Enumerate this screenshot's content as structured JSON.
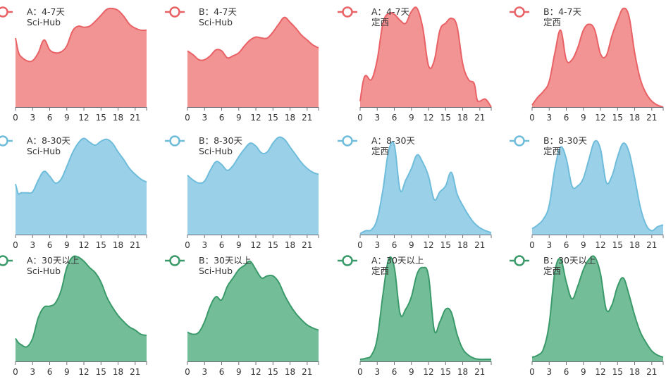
{
  "colors": {
    "red": "#e86266",
    "blue": "#6fbcdb",
    "green": "#3b9a6a"
  },
  "x_tick_labels": [
    "0",
    "3",
    "6",
    "9",
    "12",
    "15",
    "18",
    "21"
  ],
  "chart_data": [
    {
      "type": "area",
      "legend": "A：4-7天",
      "source": "Sci-Hub",
      "color": "red",
      "xlim": [
        0,
        23
      ],
      "x": [
        0,
        0.5,
        1,
        2,
        3,
        4,
        5,
        6,
        7,
        8,
        9,
        10,
        11,
        12,
        13,
        14,
        15,
        16,
        17,
        18,
        19,
        20,
        21,
        22,
        23
      ],
      "y": [
        0.7,
        0.56,
        0.51,
        0.47,
        0.47,
        0.55,
        0.68,
        0.58,
        0.55,
        0.56,
        0.62,
        0.77,
        0.82,
        0.81,
        0.82,
        0.87,
        0.93,
        0.99,
        1.0,
        0.98,
        0.92,
        0.84,
        0.8,
        0.78,
        0.78
      ]
    },
    {
      "type": "area",
      "legend": "B：4-7天",
      "source": "Sci-Hub",
      "color": "red",
      "xlim": [
        0,
        23
      ],
      "x": [
        0,
        1,
        2,
        3,
        4,
        5,
        6,
        7,
        8,
        9,
        10,
        11,
        12,
        13,
        14,
        15,
        16,
        17,
        18,
        19,
        20,
        21,
        22,
        23
      ],
      "y": [
        0.57,
        0.53,
        0.48,
        0.48,
        0.52,
        0.58,
        0.57,
        0.5,
        0.52,
        0.55,
        0.62,
        0.68,
        0.71,
        0.7,
        0.7,
        0.76,
        0.84,
        0.91,
        0.86,
        0.8,
        0.73,
        0.68,
        0.63,
        0.6
      ]
    },
    {
      "type": "area",
      "legend": "A：4-7天",
      "source": "定西",
      "color": "red",
      "xlim": [
        0,
        23
      ],
      "x": [
        0,
        0.5,
        1,
        2,
        3,
        4,
        5,
        6,
        7,
        8,
        9,
        10,
        11,
        12,
        13,
        14,
        15,
        16,
        17,
        18,
        19,
        20,
        20.5,
        21,
        22,
        23
      ],
      "y": [
        0.06,
        0.25,
        0.32,
        0.28,
        0.48,
        0.85,
        0.95,
        0.94,
        0.88,
        0.85,
        0.97,
        1.0,
        0.8,
        0.42,
        0.47,
        0.78,
        0.85,
        0.9,
        0.82,
        0.44,
        0.28,
        0.24,
        0.08,
        0.06,
        0.08,
        0.0
      ]
    },
    {
      "type": "area",
      "legend": "B：4-7天",
      "source": "定西",
      "color": "red",
      "xlim": [
        0,
        23
      ],
      "x": [
        0,
        1,
        2,
        3,
        4,
        5,
        6,
        7,
        8,
        9,
        10,
        11,
        12,
        13,
        14,
        15,
        16,
        17,
        18,
        19,
        20,
        21,
        22,
        23
      ],
      "y": [
        0.02,
        0.1,
        0.16,
        0.26,
        0.55,
        0.78,
        0.48,
        0.48,
        0.6,
        0.78,
        0.84,
        0.78,
        0.54,
        0.52,
        0.72,
        0.88,
        1.0,
        0.92,
        0.55,
        0.28,
        0.14,
        0.06,
        0.02,
        0.0
      ]
    },
    {
      "type": "area",
      "legend": "A：8-30天",
      "source": "Sci-Hub",
      "color": "blue",
      "xlim": [
        0,
        23
      ],
      "x": [
        0,
        0.5,
        1,
        2,
        3,
        4,
        5,
        6,
        7,
        8,
        9,
        10,
        11,
        12,
        13,
        14,
        15,
        16,
        17,
        18,
        19,
        20,
        21,
        22,
        23
      ],
      "y": [
        0.52,
        0.42,
        0.43,
        0.43,
        0.44,
        0.56,
        0.65,
        0.6,
        0.53,
        0.57,
        0.7,
        0.84,
        0.94,
        0.99,
        0.95,
        0.92,
        0.96,
        0.98,
        0.94,
        0.85,
        0.77,
        0.68,
        0.62,
        0.57,
        0.54
      ]
    },
    {
      "type": "area",
      "legend": "B：8-30天",
      "source": "Sci-Hub",
      "color": "blue",
      "xlim": [
        0,
        23
      ],
      "x": [
        0,
        1,
        2,
        3,
        4,
        5,
        6,
        7,
        8,
        9,
        10,
        11,
        12,
        13,
        14,
        15,
        16,
        17,
        18,
        19,
        20,
        21,
        22,
        23
      ],
      "y": [
        0.61,
        0.56,
        0.53,
        0.55,
        0.66,
        0.75,
        0.72,
        0.66,
        0.71,
        0.8,
        0.88,
        0.94,
        0.91,
        0.84,
        0.85,
        0.94,
        1.0,
        0.98,
        0.9,
        0.82,
        0.74,
        0.68,
        0.64,
        0.62
      ]
    },
    {
      "type": "area",
      "legend": "A：8-30天",
      "source": "定西",
      "color": "blue",
      "xlim": [
        0,
        23
      ],
      "x": [
        0,
        1,
        2,
        3,
        4,
        5,
        6,
        7,
        8,
        9,
        10,
        11,
        12,
        13,
        14,
        15,
        16,
        17,
        18,
        19,
        20,
        21,
        22,
        23
      ],
      "y": [
        0.01,
        0.04,
        0.05,
        0.16,
        0.46,
        0.86,
        0.92,
        0.46,
        0.56,
        0.68,
        0.82,
        0.74,
        0.6,
        0.36,
        0.44,
        0.5,
        0.64,
        0.42,
        0.3,
        0.2,
        0.12,
        0.07,
        0.04,
        0.02
      ]
    },
    {
      "type": "area",
      "legend": "B：8-30天",
      "source": "定西",
      "color": "blue",
      "xlim": [
        0,
        23
      ],
      "x": [
        0,
        1,
        2,
        3,
        4,
        5,
        6,
        7,
        8,
        9,
        10,
        11,
        12,
        13,
        14,
        15,
        16,
        17,
        18,
        19,
        20,
        21,
        22,
        23
      ],
      "y": [
        0.06,
        0.1,
        0.16,
        0.3,
        0.68,
        0.9,
        0.78,
        0.5,
        0.5,
        0.58,
        0.78,
        0.96,
        0.88,
        0.54,
        0.6,
        0.8,
        0.94,
        0.85,
        0.58,
        0.28,
        0.1,
        0.04,
        0.08,
        0.1
      ]
    },
    {
      "type": "area",
      "legend": "A：30天以上",
      "source": "Sci-Hub",
      "color": "green",
      "xlim": [
        0,
        23
      ],
      "x": [
        0,
        0.5,
        1,
        2,
        3,
        4,
        5,
        6,
        7,
        8,
        9,
        10,
        11,
        12,
        13,
        14,
        15,
        16,
        17,
        18,
        19,
        20,
        21,
        22,
        23
      ],
      "y": [
        0.22,
        0.18,
        0.16,
        0.14,
        0.22,
        0.42,
        0.52,
        0.53,
        0.56,
        0.68,
        0.9,
        1.0,
        1.0,
        0.96,
        0.9,
        0.85,
        0.76,
        0.62,
        0.52,
        0.44,
        0.38,
        0.33,
        0.3,
        0.26,
        0.25
      ]
    },
    {
      "type": "area",
      "legend": "B：30天以上",
      "source": "Sci-Hub",
      "color": "green",
      "xlim": [
        0,
        23
      ],
      "x": [
        0,
        1,
        2,
        3,
        4,
        5,
        6,
        7,
        8,
        9,
        10,
        11,
        12,
        13,
        14,
        15,
        16,
        17,
        18,
        19,
        20,
        21,
        22,
        23
      ],
      "y": [
        0.28,
        0.26,
        0.28,
        0.38,
        0.53,
        0.62,
        0.59,
        0.72,
        0.8,
        0.88,
        0.92,
        0.96,
        0.88,
        0.8,
        0.82,
        0.82,
        0.76,
        0.64,
        0.54,
        0.46,
        0.4,
        0.35,
        0.32,
        0.3
      ]
    },
    {
      "type": "area",
      "legend": "A：30天以上",
      "source": "定西",
      "color": "green",
      "xlim": [
        0,
        23
      ],
      "x": [
        0,
        1,
        2,
        3,
        4,
        5,
        6,
        7,
        8,
        9,
        10,
        11,
        12,
        13,
        14,
        15,
        16,
        17,
        18,
        19,
        20,
        21,
        22,
        23
      ],
      "y": [
        0.02,
        0.03,
        0.06,
        0.22,
        0.64,
        0.98,
        0.9,
        0.46,
        0.5,
        0.62,
        0.84,
        0.9,
        0.82,
        0.3,
        0.38,
        0.5,
        0.47,
        0.26,
        0.12,
        0.06,
        0.03,
        0.02,
        0.02,
        0.02
      ]
    },
    {
      "type": "area",
      "legend": "B：30天以上",
      "source": "定西",
      "color": "green",
      "xlim": [
        0,
        23
      ],
      "x": [
        0,
        1,
        2,
        3,
        4,
        5,
        6,
        7,
        8,
        9,
        10,
        11,
        12,
        13,
        14,
        15,
        16,
        17,
        18,
        19,
        20,
        21,
        22,
        23
      ],
      "y": [
        0.04,
        0.06,
        0.12,
        0.36,
        0.86,
        0.98,
        0.76,
        0.6,
        0.72,
        0.88,
        0.98,
        1.0,
        0.84,
        0.5,
        0.54,
        0.72,
        0.8,
        0.64,
        0.44,
        0.28,
        0.18,
        0.1,
        0.06,
        0.04
      ]
    }
  ]
}
